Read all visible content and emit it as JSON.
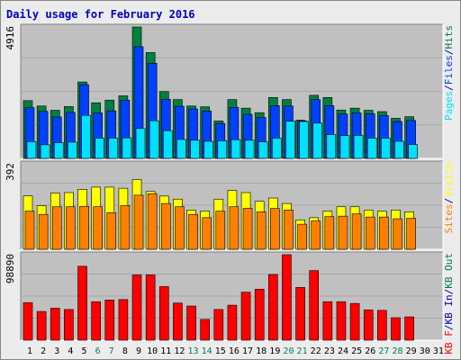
{
  "title": "Daily usage for February 2016",
  "colors": {
    "hits": "#008040",
    "files": "#0040ff",
    "pages": "#00e0ff",
    "visits": "#ffff00",
    "sites": "#ff8000",
    "kbin": "#0000c0",
    "kbout": "#ff0000",
    "weekend": "#00805c",
    "weekday": "#0000c0",
    "panel": "#c0c0c0"
  },
  "chart_data": [
    {
      "type": "bar",
      "ymax_label": "4916",
      "ylim": [
        0,
        4916
      ],
      "right_label": [
        {
          "text": "Pages",
          "color": "#00e0ff"
        },
        {
          "text": "/",
          "color": "#0000c0"
        },
        {
          "text": "Files",
          "color": "#0040ff"
        },
        {
          "text": "/",
          "color": "#0000c0"
        },
        {
          "text": "Hits",
          "color": "#008040"
        }
      ],
      "categories": [
        "1",
        "2",
        "3",
        "4",
        "5",
        "6",
        "7",
        "8",
        "9",
        "10",
        "11",
        "12",
        "13",
        "14",
        "15",
        "16",
        "17",
        "18",
        "19",
        "20",
        "21",
        "22",
        "23",
        "24",
        "25",
        "26",
        "27",
        "28",
        "29",
        "30",
        "31"
      ],
      "series": [
        {
          "name": "Hits",
          "color": "#008040",
          "values": [
            2160,
            1960,
            1800,
            1940,
            2860,
            2080,
            2180,
            2340,
            4916,
            3960,
            2500,
            2200,
            1960,
            1930,
            1400,
            2200,
            1880,
            1710,
            2280,
            2200,
            1430,
            2360,
            2280,
            1810,
            1880,
            1800,
            1750,
            1500,
            1560,
            null,
            null
          ]
        },
        {
          "name": "Files",
          "color": "#0040ff",
          "values": [
            1900,
            1760,
            1550,
            1720,
            2760,
            1700,
            1780,
            2180,
            4180,
            3560,
            2210,
            1950,
            1850,
            1770,
            1310,
            1910,
            1650,
            1530,
            1970,
            1960,
            1400,
            2200,
            1970,
            1660,
            1700,
            1670,
            1600,
            1380,
            1420,
            null,
            null
          ]
        },
        {
          "name": "Pages",
          "color": "#00e0ff",
          "values": [
            630,
            510,
            590,
            610,
            1610,
            760,
            760,
            770,
            1120,
            1410,
            1040,
            710,
            680,
            640,
            660,
            700,
            680,
            620,
            760,
            1390,
            1380,
            1320,
            890,
            850,
            860,
            760,
            760,
            640,
            520,
            null,
            null
          ]
        }
      ]
    },
    {
      "type": "bar",
      "ymax_label": "392",
      "ylim": [
        0,
        392
      ],
      "right_label": [
        {
          "text": "Sites",
          "color": "#ff8000"
        },
        {
          "text": "/",
          "color": "#0000c0"
        },
        {
          "text": "Visits",
          "color": "#ffff00"
        }
      ],
      "categories": [
        "1",
        "2",
        "3",
        "4",
        "5",
        "6",
        "7",
        "8",
        "9",
        "10",
        "11",
        "12",
        "13",
        "14",
        "15",
        "16",
        "17",
        "18",
        "19",
        "20",
        "21",
        "22",
        "23",
        "24",
        "25",
        "26",
        "27",
        "28",
        "29",
        "30",
        "31"
      ],
      "series": [
        {
          "name": "Visits",
          "color": "#ffff00",
          "values": [
            245,
            200,
            258,
            260,
            275,
            285,
            285,
            280,
            320,
            265,
            244,
            230,
            180,
            175,
            230,
            270,
            260,
            220,
            235,
            210,
            135,
            145,
            175,
            195,
            195,
            180,
            175,
            180,
            172,
            null,
            null
          ]
        },
        {
          "name": "Sites",
          "color": "#ff8000",
          "values": [
            175,
            160,
            195,
            195,
            197,
            195,
            168,
            200,
            248,
            255,
            210,
            195,
            160,
            145,
            175,
            195,
            188,
            172,
            187,
            180,
            115,
            130,
            150,
            152,
            162,
            148,
            148,
            140,
            142,
            null,
            null
          ]
        }
      ]
    },
    {
      "type": "bar",
      "ymax_label": "98890",
      "ylim": [
        0,
        98890
      ],
      "right_label": [
        {
          "text": "KB F",
          "color": "#ff0000"
        },
        {
          "text": "/",
          "color": "#0000c0"
        },
        {
          "text": "KB In",
          "color": "#0000c0"
        },
        {
          "text": "/",
          "color": "#0000c0"
        },
        {
          "text": "KB Out",
          "color": "#008040"
        }
      ],
      "categories": [
        "1",
        "2",
        "3",
        "4",
        "5",
        "6",
        "7",
        "8",
        "9",
        "10",
        "11",
        "12",
        "13",
        "14",
        "15",
        "16",
        "17",
        "18",
        "19",
        "20",
        "21",
        "22",
        "23",
        "24",
        "25",
        "26",
        "27",
        "28",
        "29",
        "30",
        "31"
      ],
      "series": [
        {
          "name": "KB F",
          "color": "#ff0000",
          "values": [
            43500,
            33200,
            37000,
            35500,
            85500,
            44500,
            46500,
            47000,
            75500,
            75500,
            62000,
            43000,
            39500,
            24000,
            35500,
            40500,
            55500,
            59000,
            76000,
            98890,
            61000,
            80500,
            44500,
            44500,
            42500,
            35000,
            34500,
            26000,
            27000,
            null,
            null
          ]
        }
      ]
    }
  ],
  "x_axis": {
    "days": [
      "1",
      "2",
      "3",
      "4",
      "5",
      "6",
      "7",
      "8",
      "9",
      "10",
      "11",
      "12",
      "13",
      "14",
      "15",
      "16",
      "17",
      "18",
      "19",
      "20",
      "21",
      "22",
      "23",
      "24",
      "25",
      "26",
      "27",
      "28",
      "29",
      "30",
      "31"
    ],
    "weekend": [
      6,
      7,
      13,
      14,
      20,
      21,
      27,
      28
    ]
  }
}
